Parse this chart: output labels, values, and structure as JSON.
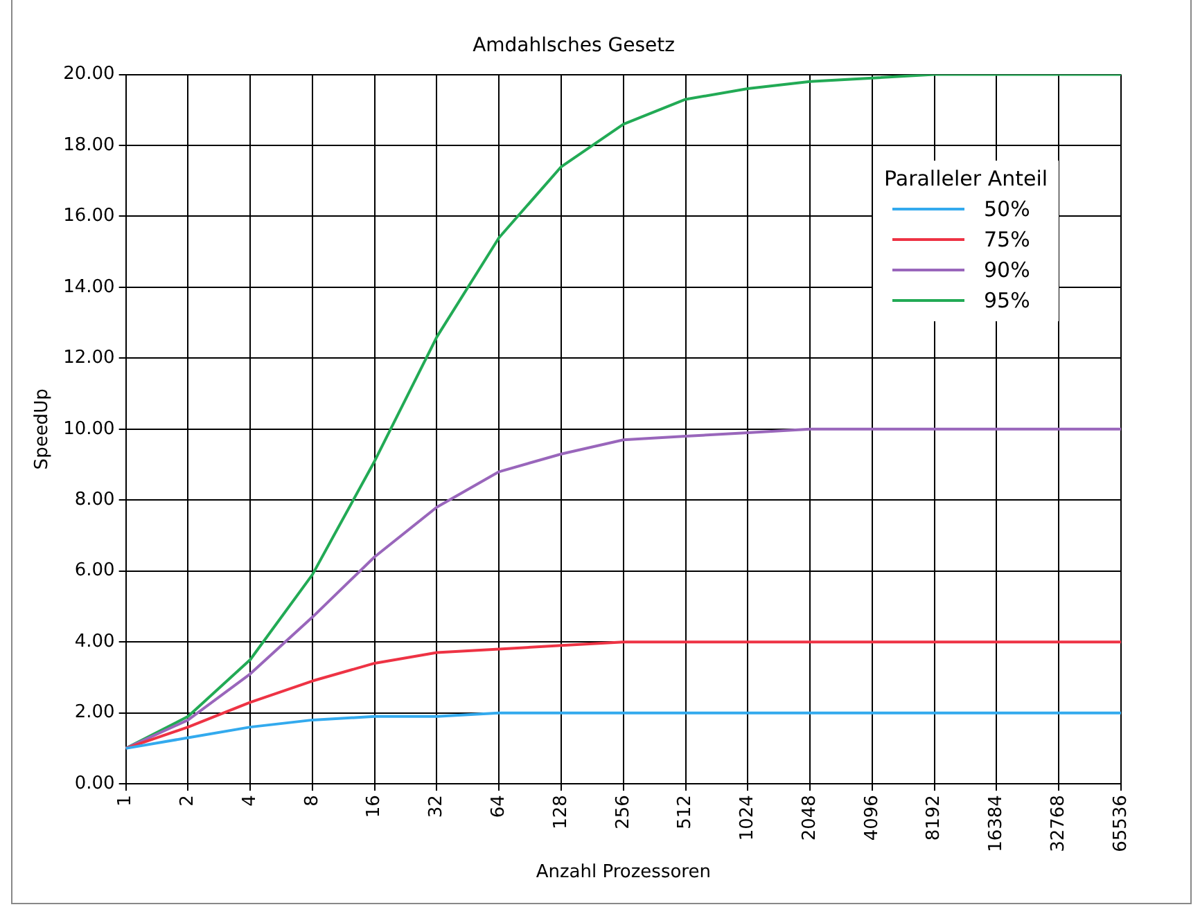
{
  "chart_data": {
    "type": "line",
    "title": "Amdahlsches Gesetz",
    "xlabel": "Anzahl Prozessoren",
    "ylabel": "SpeedUp",
    "legend_title": "Paralleler Anteil",
    "categories": [
      "1",
      "2",
      "4",
      "8",
      "16",
      "32",
      "64",
      "128",
      "256",
      "512",
      "1024",
      "2048",
      "4096",
      "8192",
      "16384",
      "32768",
      "65536"
    ],
    "series": [
      {
        "name": "50%",
        "color": "#33aaee",
        "values": [
          1.0,
          1.3,
          1.6,
          1.8,
          1.9,
          1.9,
          2.0,
          2.0,
          2.0,
          2.0,
          2.0,
          2.0,
          2.0,
          2.0,
          2.0,
          2.0,
          2.0
        ]
      },
      {
        "name": "75%",
        "color": "#ee3344",
        "values": [
          1.0,
          1.6,
          2.3,
          2.9,
          3.4,
          3.7,
          3.8,
          3.9,
          4.0,
          4.0,
          4.0,
          4.0,
          4.0,
          4.0,
          4.0,
          4.0,
          4.0
        ]
      },
      {
        "name": "90%",
        "color": "#9966bb",
        "values": [
          1.0,
          1.8,
          3.1,
          4.7,
          6.4,
          7.8,
          8.8,
          9.3,
          9.7,
          9.8,
          9.9,
          10.0,
          10.0,
          10.0,
          10.0,
          10.0,
          10.0
        ]
      },
      {
        "name": "95%",
        "color": "#22aa55",
        "values": [
          1.0,
          1.9,
          3.5,
          5.9,
          9.1,
          12.6,
          15.4,
          17.4,
          18.6,
          19.3,
          19.6,
          19.8,
          19.9,
          20.0,
          20.0,
          20.0,
          20.0
        ]
      }
    ],
    "ylim": [
      0,
      20
    ],
    "yticks": [
      {
        "value": 0,
        "label": "0.00"
      },
      {
        "value": 2,
        "label": "2.00"
      },
      {
        "value": 4,
        "label": "4.00"
      },
      {
        "value": 6,
        "label": "6.00"
      },
      {
        "value": 8,
        "label": "8.00"
      },
      {
        "value": 10,
        "label": "10.00"
      },
      {
        "value": 12,
        "label": "12.00"
      },
      {
        "value": 14,
        "label": "14.00"
      },
      {
        "value": 16,
        "label": "16.00"
      },
      {
        "value": 18,
        "label": "18.00"
      },
      {
        "value": 20,
        "label": "20.00"
      }
    ],
    "grid": true,
    "legend": "top right",
    "marker": "none",
    "line_style": "solid"
  }
}
